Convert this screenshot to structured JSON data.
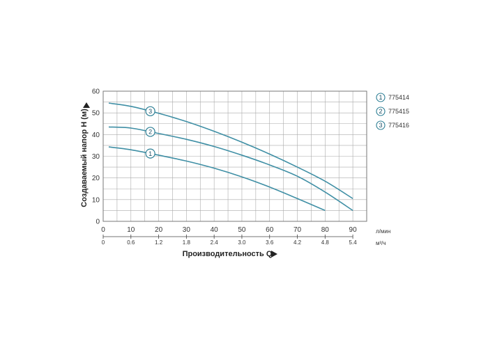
{
  "chart_data": {
    "type": "line",
    "xlabel": "Производительность Q",
    "ylabel": "Создаваемый напор H (м)",
    "x_unit": "л/мин",
    "x2_unit": "м³/ч",
    "xlim": [
      0,
      95
    ],
    "ylim": [
      0,
      60
    ],
    "xticks": [
      0,
      10,
      20,
      30,
      40,
      50,
      60,
      70,
      80,
      90
    ],
    "yticks": [
      0,
      10,
      20,
      30,
      40,
      50,
      60
    ],
    "x2ticks": [
      "0",
      "0.6",
      "1.2",
      "1.8",
      "2.4",
      "3.0",
      "3.6",
      "4.2",
      "4.8",
      "5.4"
    ],
    "grid": true,
    "legend_position": "right",
    "series": [
      {
        "marker": "1",
        "name": "775414",
        "x": [
          2,
          10,
          20,
          30,
          40,
          50,
          60,
          70,
          80
        ],
        "y": [
          34.3,
          33,
          30.5,
          27.8,
          24.5,
          20.5,
          15.8,
          10.5,
          5
        ]
      },
      {
        "marker": "2",
        "name": "775415",
        "x": [
          2,
          10,
          20,
          30,
          40,
          50,
          60,
          70,
          80,
          90
        ],
        "y": [
          43.5,
          43,
          40.5,
          37.8,
          34.5,
          30.5,
          26,
          20.8,
          13.5,
          5
        ]
      },
      {
        "marker": "3",
        "name": "775416",
        "x": [
          2,
          10,
          20,
          30,
          40,
          50,
          60,
          70,
          80,
          90
        ],
        "y": [
          54.5,
          53,
          49.8,
          46,
          41.5,
          36.5,
          31,
          25,
          18.5,
          10.5
        ]
      }
    ],
    "marker_label_x": 17
  },
  "colors": {
    "curve": "#3f8fa5",
    "marker": "#2d7f95",
    "grid": "#aaaaaa",
    "frame": "#777777"
  }
}
